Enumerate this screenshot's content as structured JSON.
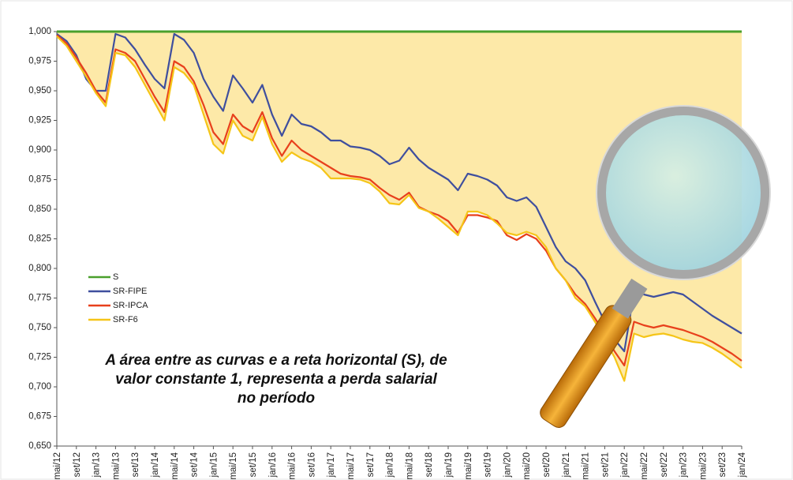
{
  "chart_data": {
    "type": "line",
    "annotation": [
      "A área entre as curvas e a reta horizontal (S), de",
      "valor constante 1, representa a perda salarial",
      "no período"
    ],
    "categories": [
      "mai/12",
      null,
      "set/12",
      null,
      "jan/13",
      null,
      "mai/13",
      null,
      "set/13",
      null,
      "jan/14",
      null,
      "mai/14",
      null,
      "set/14",
      null,
      "jan/15",
      null,
      "mai/15",
      null,
      "set/15",
      null,
      "jan/16",
      null,
      "mai/16",
      null,
      "set/16",
      null,
      "jan/17",
      null,
      "mai/17",
      null,
      "set/17",
      null,
      "jan/18",
      null,
      "mai/18",
      null,
      "set/18",
      null,
      "jan/19",
      null,
      "mai/19",
      null,
      "set/19",
      null,
      "jan/20",
      null,
      "mai/20",
      null,
      "set/20",
      null,
      "jan/21",
      null,
      "mai/21",
      null,
      "set/21",
      null,
      "jan/22",
      null,
      "mai/22",
      null,
      "set/22",
      null,
      "jan/23",
      null,
      "mai/23",
      null,
      "set/23",
      null,
      "jan/24"
    ],
    "series": [
      {
        "name": "S",
        "color": "#4aa02c",
        "values": [
          1,
          1,
          1,
          1,
          1,
          1,
          1,
          1,
          1,
          1,
          1,
          1,
          1,
          1,
          1,
          1,
          1,
          1,
          1,
          1,
          1,
          1,
          1,
          1,
          1,
          1,
          1,
          1,
          1,
          1,
          1,
          1,
          1,
          1,
          1,
          1,
          1,
          1,
          1,
          1,
          1,
          1,
          1,
          1,
          1,
          1,
          1,
          1,
          1,
          1,
          1,
          1,
          1,
          1,
          1,
          1,
          1,
          1,
          1,
          1,
          1,
          1,
          1,
          1,
          1,
          1,
          1,
          1,
          1,
          1,
          1
        ]
      },
      {
        "name": "SR-FIPE",
        "color": "#3f4f9e",
        "values": [
          0.998,
          0.992,
          0.98,
          0.96,
          0.95,
          0.95,
          0.998,
          0.995,
          0.985,
          0.972,
          0.96,
          0.952,
          0.998,
          0.993,
          0.982,
          0.96,
          0.945,
          0.933,
          0.963,
          0.952,
          0.94,
          0.955,
          0.93,
          0.912,
          0.93,
          0.922,
          0.92,
          0.915,
          0.908,
          0.908,
          0.903,
          0.902,
          0.9,
          0.895,
          0.888,
          0.891,
          0.902,
          0.892,
          0.885,
          0.88,
          0.875,
          0.866,
          0.88,
          0.878,
          0.875,
          0.87,
          0.86,
          0.857,
          0.86,
          0.852,
          0.835,
          0.818,
          0.806,
          0.8,
          0.79,
          0.772,
          0.755,
          0.74,
          0.73,
          0.78,
          0.778,
          0.776,
          0.778,
          0.78,
          0.778,
          0.772,
          0.766,
          0.76,
          0.755,
          0.75,
          0.745
        ]
      },
      {
        "name": "SR-IPCA",
        "color": "#e8401c",
        "values": [
          0.997,
          0.99,
          0.978,
          0.965,
          0.95,
          0.94,
          0.985,
          0.982,
          0.975,
          0.96,
          0.945,
          0.932,
          0.975,
          0.97,
          0.958,
          0.938,
          0.915,
          0.905,
          0.93,
          0.92,
          0.915,
          0.932,
          0.91,
          0.895,
          0.908,
          0.9,
          0.895,
          0.89,
          0.885,
          0.88,
          0.878,
          0.877,
          0.875,
          0.868,
          0.862,
          0.858,
          0.864,
          0.852,
          0.848,
          0.845,
          0.84,
          0.83,
          0.845,
          0.845,
          0.843,
          0.84,
          0.828,
          0.824,
          0.829,
          0.825,
          0.815,
          0.8,
          0.79,
          0.778,
          0.77,
          0.758,
          0.745,
          0.73,
          0.718,
          0.755,
          0.752,
          0.75,
          0.752,
          0.75,
          0.748,
          0.745,
          0.742,
          0.738,
          0.733,
          0.728,
          0.722
        ]
      },
      {
        "name": "SR-F6",
        "color": "#f5c518",
        "values": [
          0.996,
          0.988,
          0.975,
          0.962,
          0.948,
          0.937,
          0.982,
          0.98,
          0.97,
          0.955,
          0.94,
          0.925,
          0.97,
          0.965,
          0.955,
          0.93,
          0.905,
          0.897,
          0.925,
          0.912,
          0.908,
          0.928,
          0.905,
          0.89,
          0.898,
          0.893,
          0.89,
          0.885,
          0.876,
          0.876,
          0.876,
          0.875,
          0.872,
          0.865,
          0.855,
          0.854,
          0.862,
          0.851,
          0.848,
          0.842,
          0.835,
          0.828,
          0.848,
          0.848,
          0.845,
          0.838,
          0.83,
          0.828,
          0.831,
          0.828,
          0.818,
          0.8,
          0.79,
          0.775,
          0.768,
          0.755,
          0.74,
          0.725,
          0.705,
          0.745,
          0.742,
          0.744,
          0.745,
          0.743,
          0.74,
          0.738,
          0.737,
          0.733,
          0.728,
          0.722,
          0.716
        ]
      }
    ],
    "ylim": [
      0.65,
      1.0
    ],
    "yticks": [
      {
        "value": 0.65,
        "label": "0,650"
      },
      {
        "value": 0.675,
        "label": "0,675"
      },
      {
        "value": 0.7,
        "label": "0,700"
      },
      {
        "value": 0.725,
        "label": "0,725"
      },
      {
        "value": 0.75,
        "label": "0,750"
      },
      {
        "value": 0.775,
        "label": "0,775"
      },
      {
        "value": 0.8,
        "label": "0,800"
      },
      {
        "value": 0.825,
        "label": "0,825"
      },
      {
        "value": 0.85,
        "label": "0,850"
      },
      {
        "value": 0.875,
        "label": "0,875"
      },
      {
        "value": 0.9,
        "label": "0,900"
      },
      {
        "value": 0.925,
        "label": "0,925"
      },
      {
        "value": 0.95,
        "label": "0,950"
      },
      {
        "value": 0.975,
        "label": "0,975"
      },
      {
        "value": 1.0,
        "label": "1,000"
      }
    ],
    "area_color": "#fde9a8",
    "legend": "left"
  }
}
